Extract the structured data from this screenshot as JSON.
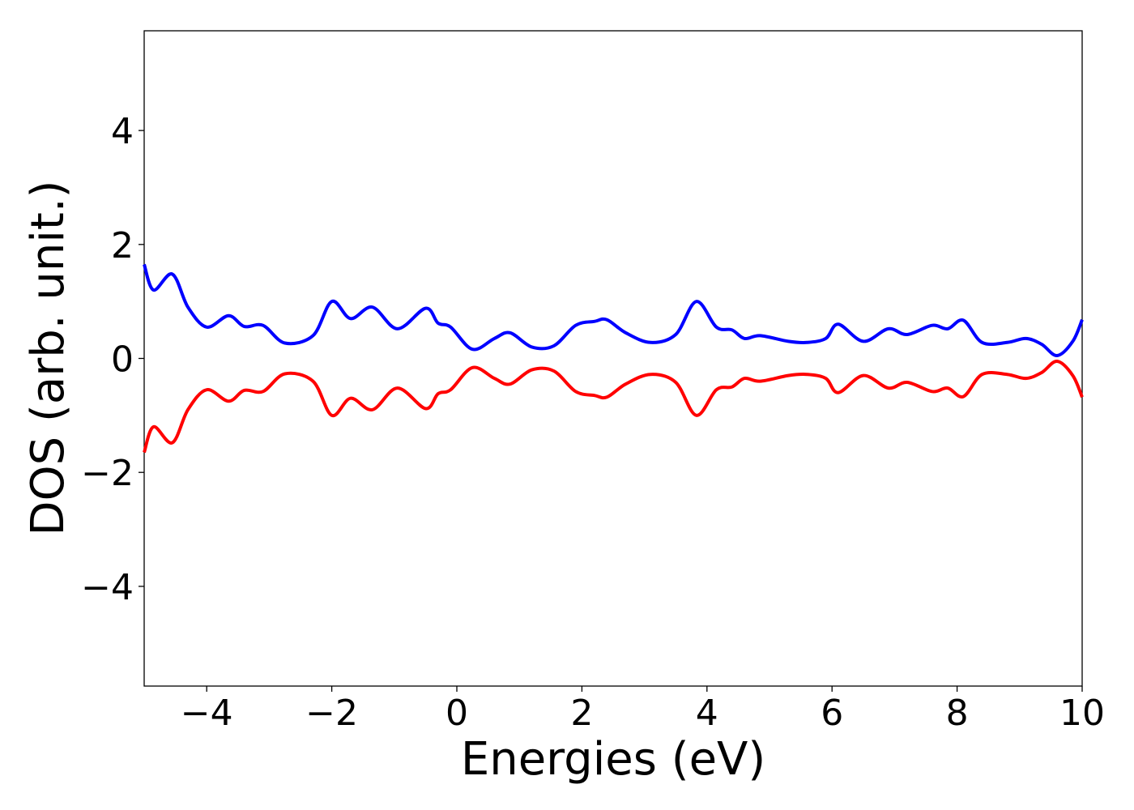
{
  "chart_data": {
    "type": "line",
    "title": "",
    "xlabel": "Energies (eV)",
    "ylabel": "DOS (arb. unit.)",
    "xlim": [
      -5,
      10
    ],
    "ylim": [
      -5.75,
      5.75
    ],
    "x_ticks": [
      -4,
      -2,
      0,
      2,
      4,
      6,
      8,
      10
    ],
    "x_tick_labels": [
      "−4",
      "−2",
      "0",
      "2",
      "4",
      "6",
      "8",
      "10"
    ],
    "y_ticks": [
      -4,
      -2,
      0,
      2,
      4
    ],
    "y_tick_labels": [
      "−4",
      "−2",
      "0",
      "2",
      "4"
    ],
    "grid": false,
    "legend": "none",
    "series": [
      {
        "color": "#0000ff",
        "points": [
          [
            -5.0,
            1.65
          ],
          [
            -4.85,
            1.2
          ],
          [
            -4.55,
            1.48
          ],
          [
            -4.3,
            0.9
          ],
          [
            -4.0,
            0.55
          ],
          [
            -3.65,
            0.75
          ],
          [
            -3.4,
            0.56
          ],
          [
            -3.1,
            0.58
          ],
          [
            -2.75,
            0.27
          ],
          [
            -2.3,
            0.4
          ],
          [
            -2.0,
            1.0
          ],
          [
            -1.7,
            0.7
          ],
          [
            -1.35,
            0.9
          ],
          [
            -0.95,
            0.52
          ],
          [
            -0.5,
            0.88
          ],
          [
            -0.3,
            0.62
          ],
          [
            -0.1,
            0.55
          ],
          [
            0.25,
            0.16
          ],
          [
            0.6,
            0.35
          ],
          [
            0.85,
            0.45
          ],
          [
            1.2,
            0.2
          ],
          [
            1.55,
            0.22
          ],
          [
            1.9,
            0.58
          ],
          [
            2.2,
            0.65
          ],
          [
            2.4,
            0.68
          ],
          [
            2.7,
            0.45
          ],
          [
            3.1,
            0.28
          ],
          [
            3.5,
            0.42
          ],
          [
            3.83,
            1.0
          ],
          [
            4.15,
            0.55
          ],
          [
            4.4,
            0.5
          ],
          [
            4.6,
            0.35
          ],
          [
            4.85,
            0.4
          ],
          [
            5.3,
            0.3
          ],
          [
            5.6,
            0.28
          ],
          [
            5.9,
            0.35
          ],
          [
            6.1,
            0.6
          ],
          [
            6.5,
            0.3
          ],
          [
            6.9,
            0.52
          ],
          [
            7.2,
            0.42
          ],
          [
            7.6,
            0.58
          ],
          [
            7.85,
            0.52
          ],
          [
            8.1,
            0.67
          ],
          [
            8.4,
            0.28
          ],
          [
            8.8,
            0.28
          ],
          [
            9.1,
            0.35
          ],
          [
            9.35,
            0.25
          ],
          [
            9.6,
            0.05
          ],
          [
            9.85,
            0.3
          ],
          [
            10.0,
            0.68
          ]
        ]
      },
      {
        "color": "#ff0000",
        "points": [
          [
            -5.0,
            -1.65
          ],
          [
            -4.85,
            -1.2
          ],
          [
            -4.55,
            -1.48
          ],
          [
            -4.3,
            -0.9
          ],
          [
            -4.0,
            -0.55
          ],
          [
            -3.65,
            -0.75
          ],
          [
            -3.4,
            -0.56
          ],
          [
            -3.1,
            -0.58
          ],
          [
            -2.75,
            -0.27
          ],
          [
            -2.3,
            -0.4
          ],
          [
            -2.0,
            -1.0
          ],
          [
            -1.7,
            -0.7
          ],
          [
            -1.35,
            -0.9
          ],
          [
            -0.95,
            -0.52
          ],
          [
            -0.5,
            -0.88
          ],
          [
            -0.3,
            -0.62
          ],
          [
            -0.1,
            -0.55
          ],
          [
            0.25,
            -0.16
          ],
          [
            0.6,
            -0.35
          ],
          [
            0.85,
            -0.45
          ],
          [
            1.2,
            -0.2
          ],
          [
            1.55,
            -0.22
          ],
          [
            1.9,
            -0.58
          ],
          [
            2.2,
            -0.65
          ],
          [
            2.4,
            -0.68
          ],
          [
            2.7,
            -0.45
          ],
          [
            3.1,
            -0.28
          ],
          [
            3.5,
            -0.42
          ],
          [
            3.83,
            -1.0
          ],
          [
            4.15,
            -0.55
          ],
          [
            4.4,
            -0.5
          ],
          [
            4.6,
            -0.35
          ],
          [
            4.85,
            -0.4
          ],
          [
            5.3,
            -0.3
          ],
          [
            5.6,
            -0.28
          ],
          [
            5.9,
            -0.35
          ],
          [
            6.1,
            -0.6
          ],
          [
            6.5,
            -0.3
          ],
          [
            6.9,
            -0.52
          ],
          [
            7.2,
            -0.42
          ],
          [
            7.6,
            -0.58
          ],
          [
            7.85,
            -0.52
          ],
          [
            8.1,
            -0.67
          ],
          [
            8.4,
            -0.28
          ],
          [
            8.8,
            -0.28
          ],
          [
            9.1,
            -0.35
          ],
          [
            9.35,
            -0.25
          ],
          [
            9.6,
            -0.05
          ],
          [
            9.85,
            -0.3
          ],
          [
            10.0,
            -0.68
          ]
        ]
      }
    ]
  }
}
